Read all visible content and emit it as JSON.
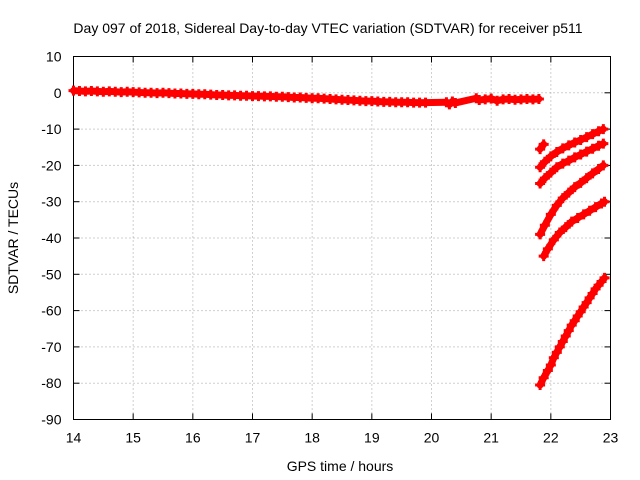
{
  "chart_data": {
    "type": "scatter",
    "title": "Day 097 of 2018, Sidereal Day-to-day VTEC variation (SDTVAR) for receiver p511",
    "xlabel": "GPS time / hours",
    "ylabel": "SDTVAR / TECUs",
    "xlim": [
      14,
      23
    ],
    "ylim": [
      -90,
      10
    ],
    "xticks": [
      "14",
      "15",
      "16",
      "17",
      "18",
      "19",
      "20",
      "21",
      "22",
      "23"
    ],
    "yticks": [
      "10",
      "0",
      "-10",
      "-20",
      "-30",
      "-40",
      "-50",
      "-60",
      "-70",
      "-80",
      "-90"
    ],
    "grid": true,
    "marker": "plus",
    "color": "#ff0000",
    "series": [
      {
        "points": [
          [
            14.0,
            0.6
          ],
          [
            14.1,
            0.5
          ],
          [
            14.2,
            0.4
          ],
          [
            14.3,
            0.5
          ],
          [
            14.4,
            0.4
          ],
          [
            14.5,
            0.3
          ],
          [
            14.6,
            0.4
          ],
          [
            14.7,
            0.3
          ],
          [
            14.8,
            0.2
          ],
          [
            14.9,
            0.3
          ],
          [
            15.0,
            0.2
          ],
          [
            15.1,
            0.1
          ],
          [
            15.2,
            0.0
          ],
          [
            15.3,
            0.0
          ],
          [
            15.4,
            -0.1
          ],
          [
            15.5,
            0.0
          ],
          [
            15.6,
            -0.1
          ],
          [
            15.7,
            -0.2
          ],
          [
            15.8,
            -0.2
          ],
          [
            15.9,
            -0.3
          ],
          [
            16.0,
            -0.3
          ],
          [
            16.1,
            -0.4
          ],
          [
            16.2,
            -0.4
          ],
          [
            16.3,
            -0.5
          ],
          [
            16.4,
            -0.6
          ],
          [
            16.5,
            -0.6
          ],
          [
            16.6,
            -0.7
          ],
          [
            16.7,
            -0.7
          ],
          [
            16.8,
            -0.8
          ],
          [
            16.9,
            -0.8
          ],
          [
            17.0,
            -0.9
          ],
          [
            17.1,
            -0.9
          ],
          [
            17.2,
            -1.0
          ],
          [
            17.3,
            -1.0
          ],
          [
            17.4,
            -1.1
          ],
          [
            17.5,
            -1.1
          ],
          [
            17.6,
            -1.2
          ],
          [
            17.7,
            -1.3
          ],
          [
            17.8,
            -1.3
          ],
          [
            17.9,
            -1.4
          ],
          [
            18.0,
            -1.5
          ],
          [
            18.1,
            -1.5
          ],
          [
            18.2,
            -1.6
          ],
          [
            18.3,
            -1.7
          ],
          [
            18.4,
            -1.8
          ],
          [
            18.5,
            -1.9
          ],
          [
            18.6,
            -2.0
          ],
          [
            18.7,
            -2.1
          ],
          [
            18.8,
            -2.2
          ],
          [
            18.9,
            -2.3
          ],
          [
            19.0,
            -2.3
          ],
          [
            19.1,
            -2.4
          ],
          [
            19.2,
            -2.5
          ],
          [
            19.3,
            -2.5
          ],
          [
            19.4,
            -2.6
          ],
          [
            19.5,
            -2.6
          ],
          [
            19.6,
            -2.6
          ],
          [
            19.7,
            -2.7
          ],
          [
            19.8,
            -2.7
          ],
          [
            19.9,
            -2.7
          ],
          [
            20.25,
            -2.6
          ],
          [
            20.3,
            -3.2
          ],
          [
            20.35,
            -2.4
          ],
          [
            20.4,
            -2.8
          ],
          [
            20.75,
            -1.5
          ],
          [
            20.8,
            -2.0
          ],
          [
            20.9,
            -1.8
          ],
          [
            21.0,
            -1.6
          ],
          [
            21.1,
            -2.2
          ],
          [
            21.2,
            -1.8
          ],
          [
            21.3,
            -1.7
          ],
          [
            21.4,
            -1.9
          ],
          [
            21.5,
            -1.8
          ],
          [
            21.6,
            -1.7
          ],
          [
            21.7,
            -1.8
          ],
          [
            21.8,
            -1.7
          ]
        ]
      },
      {
        "points": [
          [
            21.82,
            -15.5
          ],
          [
            21.88,
            -14.2
          ]
        ]
      },
      {
        "points": [
          [
            21.82,
            -20.5
          ],
          [
            21.9,
            -19.0
          ],
          [
            22.0,
            -17.5
          ],
          [
            22.1,
            -16.3
          ],
          [
            22.2,
            -15.3
          ],
          [
            22.3,
            -14.5
          ],
          [
            22.4,
            -13.7
          ],
          [
            22.5,
            -13.0
          ],
          [
            22.6,
            -12.2
          ],
          [
            22.7,
            -11.4
          ],
          [
            22.8,
            -10.6
          ],
          [
            22.88,
            -10.0
          ]
        ]
      },
      {
        "points": [
          [
            21.82,
            -25.0
          ],
          [
            21.9,
            -23.5
          ],
          [
            22.0,
            -22.0
          ],
          [
            22.1,
            -20.5
          ],
          [
            22.2,
            -19.5
          ],
          [
            22.3,
            -18.7
          ],
          [
            22.4,
            -17.8
          ],
          [
            22.5,
            -17.0
          ],
          [
            22.6,
            -16.2
          ],
          [
            22.7,
            -15.4
          ],
          [
            22.8,
            -14.6
          ],
          [
            22.88,
            -14.0
          ]
        ]
      },
      {
        "points": [
          [
            21.82,
            -39.0
          ],
          [
            21.9,
            -36.5
          ],
          [
            22.0,
            -33.5
          ],
          [
            22.1,
            -31.0
          ],
          [
            22.2,
            -29.0
          ],
          [
            22.3,
            -27.5
          ],
          [
            22.4,
            -26.0
          ],
          [
            22.5,
            -24.8
          ],
          [
            22.6,
            -23.5
          ],
          [
            22.7,
            -22.2
          ],
          [
            22.8,
            -21.0
          ],
          [
            22.88,
            -20.0
          ]
        ]
      },
      {
        "points": [
          [
            21.88,
            -45.0
          ],
          [
            21.95,
            -43.0
          ],
          [
            22.05,
            -40.5
          ],
          [
            22.15,
            -38.5
          ],
          [
            22.25,
            -37.0
          ],
          [
            22.35,
            -35.5
          ],
          [
            22.45,
            -34.5
          ],
          [
            22.55,
            -33.5
          ],
          [
            22.65,
            -32.5
          ],
          [
            22.75,
            -31.5
          ],
          [
            22.85,
            -30.5
          ],
          [
            22.9,
            -30.0
          ]
        ]
      },
      {
        "points": [
          [
            21.82,
            -80.5
          ],
          [
            21.88,
            -78.5
          ],
          [
            21.95,
            -76.5
          ],
          [
            22.0,
            -75.0
          ],
          [
            22.05,
            -73.0
          ],
          [
            22.1,
            -71.5
          ],
          [
            22.15,
            -70.0
          ],
          [
            22.2,
            -68.5
          ],
          [
            22.25,
            -67.0
          ],
          [
            22.3,
            -65.5
          ],
          [
            22.35,
            -64.0
          ],
          [
            22.4,
            -62.8
          ],
          [
            22.45,
            -61.5
          ],
          [
            22.5,
            -60.3
          ],
          [
            22.55,
            -59.0
          ],
          [
            22.6,
            -57.8
          ],
          [
            22.65,
            -56.5
          ],
          [
            22.7,
            -55.3
          ],
          [
            22.75,
            -54.0
          ],
          [
            22.8,
            -53.0
          ],
          [
            22.85,
            -52.0
          ],
          [
            22.9,
            -51.0
          ]
        ]
      }
    ]
  }
}
